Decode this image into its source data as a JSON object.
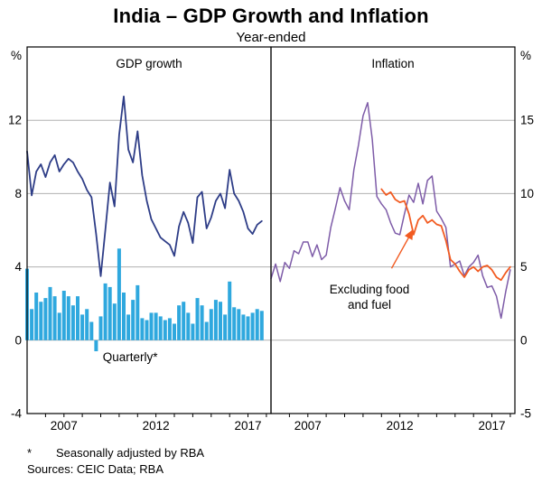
{
  "header": {
    "title": "India – GDP Growth and Inflation",
    "subtitle": "Year-ended"
  },
  "footnotes": {
    "star": "*",
    "star_text": "Seasonally adjusted by RBA",
    "sources": "Sources: CEIC Data; RBA"
  },
  "colors": {
    "gdp_line": "#2e3d87",
    "bars": "#2fa8de",
    "inflation_line": "#7e5ca8",
    "core_line": "#f25b21",
    "grid": "#b0b0b0",
    "axis": "#000000"
  },
  "chart_data": [
    {
      "type": "line+bar",
      "panel_title": "GDP growth",
      "unit": "%",
      "axis_side": "left",
      "grid": true,
      "x_range": [
        2005,
        2018.25
      ],
      "ylim": [
        -4,
        16
      ],
      "yticks": [
        -4,
        0,
        4,
        8,
        12
      ],
      "xticks": [
        2007,
        2012,
        2017
      ],
      "series": [
        {
          "name": "Quarterly (seasonally adjusted by RBA)",
          "type": "bar",
          "color_key": "bars",
          "label": {
            "text": "Quarterly*",
            "x": 2010.6,
            "y": -1.15
          },
          "x_start": 2005,
          "x_step": 0.25,
          "values": [
            3.9,
            1.7,
            2.6,
            2.1,
            2.3,
            2.9,
            2.4,
            1.5,
            2.7,
            2.4,
            1.9,
            2.4,
            1.4,
            1.7,
            1.0,
            -0.6,
            1.3,
            3.1,
            2.9,
            2.0,
            5.0,
            2.6,
            1.4,
            2.2,
            3.0,
            1.2,
            1.1,
            1.5,
            1.5,
            1.3,
            1.1,
            1.2,
            0.9,
            1.9,
            2.1,
            1.5,
            0.9,
            2.3,
            1.9,
            1.0,
            1.7,
            2.2,
            2.1,
            1.4,
            3.2,
            1.8,
            1.7,
            1.4,
            1.3,
            1.5,
            1.7,
            1.6
          ]
        },
        {
          "name": "GDP growth (year-ended)",
          "type": "line",
          "color_key": "gdp_line",
          "width": 1.8,
          "x_start": 2005,
          "x_step": 0.25,
          "values": [
            10.3,
            7.9,
            9.2,
            9.6,
            8.9,
            9.7,
            10.1,
            9.2,
            9.6,
            9.9,
            9.7,
            9.2,
            8.8,
            8.2,
            7.8,
            5.8,
            3.5,
            6.0,
            8.6,
            7.3,
            11.2,
            13.3,
            10.4,
            9.7,
            11.4,
            9.0,
            7.6,
            6.6,
            6.1,
            5.6,
            5.4,
            5.2,
            4.6,
            6.2,
            7.0,
            6.4,
            5.3,
            7.8,
            8.1,
            6.1,
            6.7,
            7.6,
            8.0,
            7.2,
            9.3,
            8.0,
            7.6,
            7.0,
            6.1,
            5.8,
            6.3,
            6.5
          ]
        }
      ]
    },
    {
      "type": "line",
      "panel_title": "Inflation",
      "unit": "%",
      "axis_side": "right",
      "grid": true,
      "x_range": [
        2005,
        2018.25
      ],
      "ylim": [
        -5,
        20
      ],
      "yticks": [
        -5,
        0,
        5,
        10,
        15
      ],
      "xticks": [
        2007,
        2012,
        2017
      ],
      "series": [
        {
          "name": "Inflation (year-ended)",
          "type": "line",
          "color_key": "inflation_line",
          "width": 1.5,
          "x_start": 2005,
          "x_step": 0.25,
          "values": [
            4.2,
            5.2,
            4.0,
            5.3,
            4.9,
            6.1,
            5.9,
            6.7,
            6.7,
            5.7,
            6.5,
            5.5,
            5.8,
            7.7,
            9.0,
            10.4,
            9.5,
            8.9,
            11.6,
            13.3,
            15.3,
            16.2,
            13.7,
            9.8,
            9.3,
            8.9,
            8.0,
            7.3,
            7.2,
            8.6,
            9.9,
            9.4,
            10.7,
            9.3,
            10.9,
            11.2,
            8.8,
            8.3,
            7.7,
            5.0,
            5.2,
            5.4,
            4.4,
            5.0,
            5.3,
            5.8,
            4.4,
            3.6,
            3.7,
            3.0,
            1.5,
            3.3,
            4.8
          ]
        },
        {
          "name": "Excluding food and fuel",
          "type": "line",
          "color_key": "core_line",
          "width": 1.8,
          "annotation": {
            "lines": [
              "Excluding food",
              "and fuel"
            ],
            "text_pos": {
              "x": 2010.35,
              "y": 3.2
            },
            "arrow_from": {
              "x": 2011.55,
              "y": 4.9
            },
            "arrow_to": {
              "x": 2012.7,
              "y": 7.5
            }
          },
          "x_start": 2011,
          "x_step": 0.25,
          "values": [
            10.3,
            9.9,
            10.1,
            9.6,
            9.4,
            9.5,
            8.6,
            7.2,
            8.2,
            8.5,
            8.0,
            8.2,
            7.9,
            7.8,
            6.8,
            5.5,
            5.2,
            4.7,
            4.3,
            4.8,
            5.0,
            4.7,
            5.0,
            5.1,
            4.8,
            4.3,
            4.1,
            4.6,
            5.0
          ]
        }
      ]
    }
  ]
}
